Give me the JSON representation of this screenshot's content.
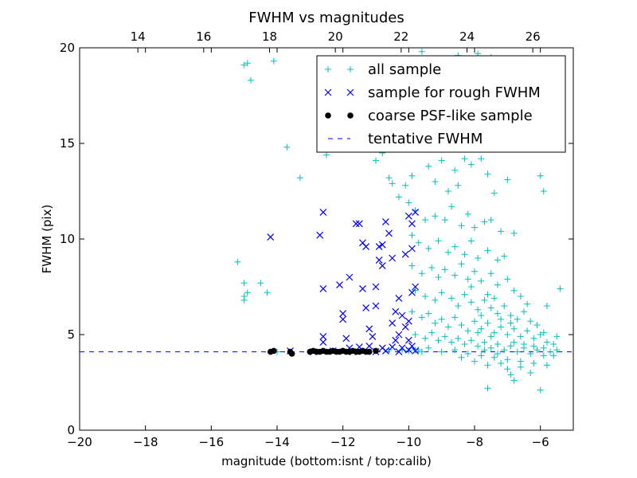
{
  "chart_data": {
    "type": "scatter",
    "title": "FWHM vs magnitudes",
    "xlabel": "magnitude (bottom:isnt / top:calib)",
    "ylabel": "FWHM (pix)",
    "xlim": [
      -20,
      -5
    ],
    "ylim": [
      0,
      20
    ],
    "x_ticks": [
      -20,
      -18,
      -16,
      -14,
      -12,
      -10,
      -8,
      -6
    ],
    "x_tick_labels": [
      "−20",
      "−18",
      "−16",
      "−14",
      "−12",
      "−10",
      "−8",
      "−6"
    ],
    "y_ticks": [
      0,
      5,
      10,
      15,
      20
    ],
    "y_tick_labels": [
      "0",
      "5",
      "10",
      "15",
      "20"
    ],
    "top_axis": {
      "xlim": [
        12.23,
        27.23
      ],
      "ticks": [
        14,
        16,
        18,
        20,
        22,
        24,
        26
      ],
      "tick_labels": [
        "14",
        "16",
        "18",
        "20",
        "22",
        "24",
        "26"
      ]
    },
    "legend_position": "top-right",
    "series": [
      {
        "name": "all sample",
        "marker": "plus",
        "color": "#00bfbf",
        "points": [
          [
            -15.0,
            19.1
          ],
          [
            -14.9,
            19.2
          ],
          [
            -14.8,
            18.3
          ],
          [
            -14.1,
            19.3
          ],
          [
            -13.7,
            14.8
          ],
          [
            -13.3,
            13.2
          ],
          [
            -15.2,
            8.8
          ],
          [
            -15.0,
            7.7
          ],
          [
            -15.0,
            7.0
          ],
          [
            -15.0,
            6.8
          ],
          [
            -14.9,
            7.2
          ],
          [
            -14.5,
            7.7
          ],
          [
            -14.3,
            7.2
          ],
          [
            -10.8,
            14.5
          ],
          [
            -10.6,
            13.2
          ],
          [
            -10.5,
            12.9
          ],
          [
            -10.3,
            12.2
          ],
          [
            -10.1,
            12.8
          ],
          [
            -9.9,
            13.3
          ],
          [
            -9.7,
            14.8
          ],
          [
            -9.5,
            15.0
          ],
          [
            -9.4,
            13.8
          ],
          [
            -9.2,
            13.0
          ],
          [
            -9.0,
            14.1
          ],
          [
            -8.8,
            12.5
          ],
          [
            -8.6,
            13.6
          ],
          [
            -8.5,
            12.8
          ],
          [
            -8.3,
            14.2
          ],
          [
            -8.1,
            13.9
          ],
          [
            -8.0,
            16.9
          ],
          [
            -7.8,
            14.2
          ],
          [
            -7.6,
            13.4
          ],
          [
            -7.4,
            12.4
          ],
          [
            -7.0,
            13.1
          ],
          [
            -6.0,
            13.3
          ],
          [
            -5.9,
            12.5
          ],
          [
            -6.8,
            10.3
          ],
          [
            -5.4,
            7.4
          ],
          [
            -5.8,
            6.5
          ],
          [
            -5.5,
            4.9
          ],
          [
            -5.6,
            3.9
          ],
          [
            -7.3,
            4.5
          ],
          [
            -7.6,
            2.2
          ],
          [
            -6.8,
            2.6
          ],
          [
            -6.0,
            2.1
          ],
          [
            -9.6,
            19.8
          ],
          [
            -8.5,
            19.6
          ],
          [
            -7.9,
            19.7
          ],
          [
            -7.5,
            19.5
          ],
          [
            -11.2,
            14.7
          ],
          [
            -11.0,
            14.1
          ],
          [
            -12.5,
            14.4
          ],
          [
            -12.0,
            14.7
          ],
          [
            -10.0,
            11.9
          ],
          [
            -9.8,
            11.5
          ],
          [
            -9.5,
            11.0
          ],
          [
            -9.2,
            11.2
          ],
          [
            -8.9,
            11.0
          ],
          [
            -8.7,
            11.7
          ],
          [
            -8.4,
            10.7
          ],
          [
            -8.2,
            11.3
          ],
          [
            -8.0,
            10.6
          ],
          [
            -7.7,
            10.9
          ],
          [
            -7.5,
            11.0
          ],
          [
            -7.2,
            10.4
          ],
          [
            -9.9,
            10.2
          ],
          [
            -9.7,
            9.8
          ],
          [
            -9.4,
            9.5
          ],
          [
            -9.1,
            9.9
          ],
          [
            -8.8,
            9.3
          ],
          [
            -8.6,
            9.6
          ],
          [
            -8.3,
            9.2
          ],
          [
            -8.1,
            9.9
          ],
          [
            -7.9,
            9.0
          ],
          [
            -7.6,
            9.4
          ],
          [
            -7.3,
            8.9
          ],
          [
            -7.1,
            9.1
          ],
          [
            -9.9,
            8.6
          ],
          [
            -9.6,
            8.2
          ],
          [
            -9.3,
            8.5
          ],
          [
            -9.1,
            8.0
          ],
          [
            -8.9,
            8.4
          ],
          [
            -8.6,
            8.1
          ],
          [
            -8.4,
            8.7
          ],
          [
            -8.2,
            7.9
          ],
          [
            -8.0,
            8.3
          ],
          [
            -7.8,
            7.8
          ],
          [
            -7.5,
            8.2
          ],
          [
            -7.3,
            7.6
          ],
          [
            -7.0,
            7.9
          ],
          [
            -6.8,
            7.3
          ],
          [
            -6.6,
            7.0
          ],
          [
            -6.4,
            6.6
          ],
          [
            -9.8,
            7.3
          ],
          [
            -9.5,
            7.0
          ],
          [
            -9.2,
            6.8
          ],
          [
            -9.0,
            7.2
          ],
          [
            -8.7,
            6.9
          ],
          [
            -8.5,
            6.5
          ],
          [
            -8.3,
            7.1
          ],
          [
            -8.1,
            6.7
          ],
          [
            -7.9,
            6.3
          ],
          [
            -7.7,
            6.8
          ],
          [
            -7.5,
            6.4
          ],
          [
            -7.3,
            6.1
          ],
          [
            -7.1,
            6.5
          ],
          [
            -6.9,
            6.0
          ],
          [
            -6.7,
            5.8
          ],
          [
            -6.5,
            6.2
          ],
          [
            -6.3,
            5.7
          ],
          [
            -6.1,
            5.5
          ],
          [
            -5.9,
            5.1
          ],
          [
            -9.9,
            6.2
          ],
          [
            -9.6,
            5.9
          ],
          [
            -9.4,
            6.1
          ],
          [
            -9.2,
            5.6
          ],
          [
            -9.0,
            5.8
          ],
          [
            -8.8,
            5.4
          ],
          [
            -8.6,
            5.9
          ],
          [
            -8.4,
            5.5
          ],
          [
            -8.2,
            5.2
          ],
          [
            -8.0,
            5.7
          ],
          [
            -7.8,
            5.3
          ],
          [
            -7.6,
            5.6
          ],
          [
            -7.4,
            5.1
          ],
          [
            -7.2,
            5.4
          ],
          [
            -7.0,
            5.0
          ],
          [
            -6.8,
            5.3
          ],
          [
            -6.6,
            4.9
          ],
          [
            -6.4,
            5.2
          ],
          [
            -6.2,
            4.8
          ],
          [
            -6.0,
            5.0
          ],
          [
            -5.8,
            4.6
          ],
          [
            -9.8,
            5.0
          ],
          [
            -9.5,
            4.8
          ],
          [
            -9.3,
            5.1
          ],
          [
            -9.1,
            4.7
          ],
          [
            -8.9,
            4.9
          ],
          [
            -8.7,
            4.6
          ],
          [
            -8.5,
            4.8
          ],
          [
            -8.3,
            4.5
          ],
          [
            -8.1,
            4.7
          ],
          [
            -7.9,
            4.4
          ],
          [
            -7.7,
            4.6
          ],
          [
            -7.5,
            4.3
          ],
          [
            -7.3,
            4.5
          ],
          [
            -7.1,
            4.2
          ],
          [
            -6.9,
            4.4
          ],
          [
            -6.7,
            4.1
          ],
          [
            -6.5,
            4.3
          ],
          [
            -6.3,
            4.0
          ],
          [
            -6.1,
            4.2
          ],
          [
            -5.9,
            3.9
          ],
          [
            -5.7,
            4.1
          ],
          [
            -9.7,
            4.2
          ],
          [
            -9.4,
            4.3
          ],
          [
            -9.0,
            4.1
          ],
          [
            -8.6,
            4.2
          ],
          [
            -8.2,
            4.0
          ],
          [
            -7.8,
            3.9
          ],
          [
            -7.4,
            3.8
          ],
          [
            -7.0,
            3.7
          ],
          [
            -6.6,
            3.6
          ],
          [
            -6.2,
            3.5
          ],
          [
            -7.6,
            3.4
          ],
          [
            -7.0,
            3.2
          ],
          [
            -6.6,
            3.3
          ],
          [
            -6.3,
            3.0
          ],
          [
            -5.8,
            3.4
          ],
          [
            -8.0,
            3.6
          ],
          [
            -8.4,
            3.8
          ],
          [
            -7.2,
            3.5
          ],
          [
            -6.9,
            2.9
          ],
          [
            -7.8,
            6.0
          ],
          [
            -7.6,
            7.1
          ],
          [
            -8.1,
            7.5
          ],
          [
            -7.4,
            6.9
          ],
          [
            -7.9,
            5.1
          ],
          [
            -7.5,
            4.9
          ],
          [
            -7.2,
            5.8
          ],
          [
            -6.9,
            5.6
          ],
          [
            -7.7,
            4.2
          ],
          [
            -7.3,
            4.0
          ],
          [
            -6.8,
            4.6
          ],
          [
            -6.5,
            4.5
          ],
          [
            -6.2,
            4.4
          ],
          [
            -5.9,
            4.3
          ],
          [
            -5.6,
            4.5
          ],
          [
            -5.5,
            4.2
          ],
          [
            -10.2,
            4.2
          ],
          [
            -10.0,
            4.15
          ],
          [
            -9.8,
            4.2
          ],
          [
            -9.6,
            4.1
          ],
          [
            -12.0,
            4.15
          ],
          [
            -13.0,
            4.1
          ],
          [
            -14.0,
            4.1
          ],
          [
            -11.4,
            4.15
          ],
          [
            -10.6,
            4.2
          ]
        ]
      },
      {
        "name": "sample for rough FWHM",
        "marker": "x",
        "color": "#0000ff",
        "points": [
          [
            -14.2,
            10.1
          ],
          [
            -12.6,
            11.4
          ],
          [
            -12.7,
            10.2
          ],
          [
            -12.6,
            7.4
          ],
          [
            -12.1,
            7.6
          ],
          [
            -12.0,
            6.1
          ],
          [
            -11.8,
            8.0
          ],
          [
            -11.6,
            10.8
          ],
          [
            -11.5,
            10.8
          ],
          [
            -11.4,
            9.8
          ],
          [
            -11.3,
            9.6
          ],
          [
            -11.4,
            7.4
          ],
          [
            -11.3,
            6.4
          ],
          [
            -11.2,
            5.3
          ],
          [
            -11.0,
            7.5
          ],
          [
            -10.9,
            8.9
          ],
          [
            -10.8,
            9.7
          ],
          [
            -10.7,
            10.9
          ],
          [
            -10.6,
            10.3
          ],
          [
            -10.5,
            9.0
          ],
          [
            -10.4,
            6.2
          ],
          [
            -10.3,
            6.9
          ],
          [
            -10.2,
            6.0
          ],
          [
            -10.1,
            5.4
          ],
          [
            -10.0,
            5.7
          ],
          [
            -9.9,
            7.2
          ],
          [
            -9.8,
            7.5
          ],
          [
            -9.9,
            10.8
          ],
          [
            -10.0,
            11.2
          ],
          [
            -9.8,
            11.4
          ],
          [
            -10.1,
            9.2
          ],
          [
            -9.9,
            9.5
          ],
          [
            -10.8,
            8.6
          ],
          [
            -10.9,
            9.6
          ],
          [
            -11.0,
            6.5
          ],
          [
            -10.5,
            5.6
          ],
          [
            -10.3,
            5.0
          ],
          [
            -12.6,
            4.9
          ],
          [
            -12.6,
            4.6
          ],
          [
            -12.0,
            5.8
          ],
          [
            -11.9,
            4.8
          ],
          [
            -11.1,
            4.9
          ],
          [
            -10.4,
            4.7
          ],
          [
            -10.0,
            4.7
          ],
          [
            -9.9,
            4.4
          ],
          [
            -11.8,
            4.3
          ],
          [
            -11.5,
            4.35
          ],
          [
            -11.2,
            4.4
          ],
          [
            -10.8,
            4.3
          ],
          [
            -10.5,
            4.35
          ],
          [
            -10.2,
            4.3
          ],
          [
            -13.6,
            4.15
          ],
          [
            -12.9,
            4.1
          ],
          [
            -12.3,
            4.15
          ],
          [
            -11.7,
            4.1
          ],
          [
            -11.0,
            4.1
          ],
          [
            -10.7,
            4.15
          ],
          [
            -10.3,
            4.1
          ],
          [
            -10.0,
            4.2
          ],
          [
            -9.8,
            4.15
          ]
        ]
      },
      {
        "name": "coarse PSF-like sample",
        "marker": "circle",
        "color": "#000000",
        "points": [
          [
            -14.2,
            4.1
          ],
          [
            -14.1,
            4.15
          ],
          [
            -13.6,
            4.1
          ],
          [
            -13.55,
            4.0
          ],
          [
            -13.0,
            4.1
          ],
          [
            -12.9,
            4.15
          ],
          [
            -12.8,
            4.1
          ],
          [
            -12.7,
            4.1
          ],
          [
            -12.6,
            4.15
          ],
          [
            -12.5,
            4.1
          ],
          [
            -12.4,
            4.1
          ],
          [
            -12.3,
            4.15
          ],
          [
            -12.2,
            4.1
          ],
          [
            -12.1,
            4.1
          ],
          [
            -12.0,
            4.15
          ],
          [
            -11.9,
            4.1
          ],
          [
            -11.8,
            4.1
          ],
          [
            -11.7,
            4.15
          ],
          [
            -11.6,
            4.1
          ],
          [
            -11.5,
            4.1
          ],
          [
            -11.4,
            4.15
          ],
          [
            -11.3,
            4.1
          ],
          [
            -11.2,
            4.1
          ],
          [
            -11.0,
            4.15
          ]
        ]
      },
      {
        "name": "tentative FWHM",
        "type": "hline",
        "linestyle": "dashed",
        "color": "#0000ff",
        "y": 4.1
      }
    ]
  }
}
